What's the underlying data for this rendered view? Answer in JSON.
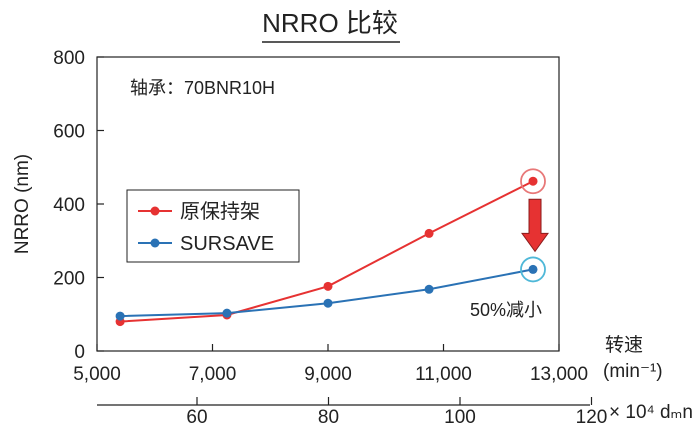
{
  "chart_data": {
    "type": "line",
    "title": "NRRO 比较",
    "ylabel": "NRRO (nm)",
    "ylim": [
      0,
      800
    ],
    "yticks": [
      0,
      200,
      400,
      600,
      800
    ],
    "xlim": [
      5000,
      13000
    ],
    "xticks": [
      5000,
      7000,
      9000,
      11000,
      13000
    ],
    "xtick_labels": [
      "5,000",
      "7,000",
      "9,000",
      "11,000",
      "13,000"
    ],
    "xlabel": "转速",
    "xlabel_unit": "(min⁻¹)",
    "secondary_x": {
      "ticks": [
        60,
        80,
        100,
        120
      ],
      "label": "× 10⁴ dₘn"
    },
    "bearing_label": "轴承：70BNR10H",
    "series": [
      {
        "name": "原保持架",
        "color": "#e63232",
        "x": [
          5400,
          7250,
          9000,
          10750,
          12550
        ],
        "y": [
          80,
          98,
          176,
          320,
          462
        ]
      },
      {
        "name": "SURSAVE",
        "color": "#2a72b5",
        "x": [
          5400,
          7250,
          9000,
          10750,
          12550
        ],
        "y": [
          95,
          103,
          130,
          168,
          222
        ]
      }
    ],
    "annotations": {
      "reduction_text": "50%减小",
      "arrow_color": "#e63232",
      "highlight_red": "#e87878",
      "highlight_blue": "#4fb8d8"
    },
    "grid": false,
    "legend_position": "center-left"
  }
}
